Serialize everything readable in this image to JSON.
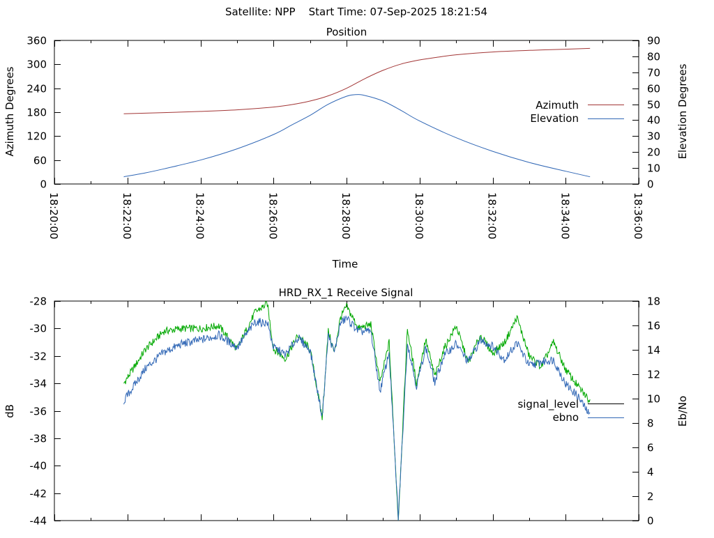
{
  "header": {
    "title": "Satellite: NPP    Start Time: 07-Sep-2025 18:21:54"
  },
  "colors": {
    "azimuth": "#a23535",
    "elevation": "#2f66b5",
    "signal_level": "#000000",
    "signal_trace": "#00a800",
    "ebno": "#2f66b5",
    "axes": "#000000",
    "background": "#ffffff"
  },
  "chart_data": [
    {
      "type": "line",
      "title": "Position",
      "xlabel": "Time",
      "ylabel": "Azimuth Degrees",
      "y2label": "Elevation Degrees",
      "xlim": [
        "18:20:00",
        "18:36:00"
      ],
      "x_ticks": [
        "18:20:00",
        "18:22:00",
        "18:24:00",
        "18:26:00",
        "18:28:00",
        "18:30:00",
        "18:32:00",
        "18:34:00",
        "18:36:00"
      ],
      "ylim": [
        0,
        360
      ],
      "y_ticks": [
        0,
        60,
        120,
        180,
        240,
        300,
        360
      ],
      "y2lim": [
        0,
        90
      ],
      "y2_ticks": [
        0,
        10,
        20,
        30,
        40,
        50,
        60,
        70,
        80,
        90
      ],
      "grid": false,
      "legend": "right",
      "series": [
        {
          "name": "Azimuth",
          "axis": "y",
          "x": [
            "18:21:54",
            "18:23:00",
            "18:24:00",
            "18:25:00",
            "18:26:00",
            "18:26:30",
            "18:27:00",
            "18:27:30",
            "18:28:00",
            "18:28:30",
            "18:29:00",
            "18:29:30",
            "18:30:00",
            "18:30:30",
            "18:31:00",
            "18:32:00",
            "18:33:00",
            "18:34:00",
            "18:34:40"
          ],
          "values": [
            176,
            179,
            182,
            186,
            193,
            199,
            208,
            221,
            240,
            264,
            285,
            301,
            311,
            318,
            324,
            331,
            335,
            338,
            340
          ]
        },
        {
          "name": "Elevation",
          "axis": "y2",
          "x": [
            "18:21:54",
            "18:22:30",
            "18:23:00",
            "18:24:00",
            "18:25:00",
            "18:26:00",
            "18:26:30",
            "18:27:00",
            "18:27:30",
            "18:28:00",
            "18:28:15",
            "18:28:30",
            "18:29:00",
            "18:29:30",
            "18:30:00",
            "18:31:00",
            "18:32:00",
            "18:33:00",
            "18:34:00",
            "18:34:40"
          ],
          "values": [
            4.5,
            7,
            9.5,
            15,
            22,
            31,
            37,
            43,
            50,
            55,
            56,
            55.5,
            52,
            46,
            39.5,
            29,
            20.5,
            13.5,
            8,
            4.5
          ]
        }
      ]
    },
    {
      "type": "line",
      "title": "HRD_RX_1 Receive Signal",
      "xlabel": "",
      "ylabel": "dB",
      "y2label": "Eb/No",
      "xlim": [
        "18:20:00",
        "18:36:00"
      ],
      "ylim": [
        -44,
        -28
      ],
      "y_ticks": [
        -44,
        -42,
        -40,
        -38,
        -36,
        -34,
        -32,
        -30,
        -28
      ],
      "y2lim": [
        0,
        18
      ],
      "y2_ticks": [
        0,
        2,
        4,
        6,
        8,
        10,
        12,
        14,
        16,
        18
      ],
      "grid": false,
      "legend": "right",
      "series": [
        {
          "name": "signal_level",
          "axis": "y",
          "x": [
            "18:21:54",
            "18:22:30",
            "18:23:00",
            "18:23:30",
            "18:24:00",
            "18:24:30",
            "18:25:00",
            "18:25:30",
            "18:25:50",
            "18:26:00",
            "18:26:20",
            "18:26:40",
            "18:27:00",
            "18:27:20",
            "18:27:30",
            "18:27:40",
            "18:27:50",
            "18:28:00",
            "18:28:20",
            "18:28:40",
            "18:28:55",
            "18:29:10",
            "18:29:25",
            "18:29:40",
            "18:29:55",
            "18:30:10",
            "18:30:25",
            "18:30:40",
            "18:31:00",
            "18:31:20",
            "18:31:40",
            "18:32:00",
            "18:32:20",
            "18:32:40",
            "18:33:00",
            "18:33:20",
            "18:33:40",
            "18:34:00",
            "18:34:20",
            "18:34:40"
          ],
          "values": [
            -34,
            -31.5,
            -30.2,
            -30,
            -30,
            -29.8,
            -31.5,
            -28.8,
            -28.2,
            -31.5,
            -32.2,
            -30.5,
            -31.5,
            -36.5,
            -30.2,
            -31.8,
            -29.2,
            -28.4,
            -30,
            -29.7,
            -34,
            -31,
            -44,
            -30,
            -34,
            -30.8,
            -33.5,
            -31.5,
            -29.8,
            -32.5,
            -30.5,
            -31.8,
            -31,
            -29.2,
            -32,
            -32.8,
            -31,
            -33,
            -34.2,
            -35.3
          ]
        },
        {
          "name": "ebno",
          "axis": "y2",
          "x": [
            "18:21:54",
            "18:22:30",
            "18:23:00",
            "18:23:30",
            "18:24:00",
            "18:24:30",
            "18:25:00",
            "18:25:30",
            "18:25:50",
            "18:26:00",
            "18:26:20",
            "18:26:40",
            "18:27:00",
            "18:27:20",
            "18:27:30",
            "18:27:40",
            "18:27:50",
            "18:28:00",
            "18:28:20",
            "18:28:40",
            "18:28:55",
            "18:29:10",
            "18:29:25",
            "18:29:40",
            "18:29:55",
            "18:30:10",
            "18:30:25",
            "18:30:40",
            "18:31:00",
            "18:31:20",
            "18:31:40",
            "18:32:00",
            "18:32:20",
            "18:32:40",
            "18:33:00",
            "18:33:20",
            "18:33:40",
            "18:34:00",
            "18:34:20",
            "18:34:40"
          ],
          "values": [
            9.8,
            12.5,
            13.8,
            14.5,
            14.8,
            15.2,
            14.2,
            16.3,
            16.2,
            14.2,
            13.6,
            15,
            14,
            8.5,
            15.2,
            13.8,
            16.2,
            16.6,
            15.5,
            15.5,
            10.6,
            13.8,
            0.2,
            14.6,
            11,
            14.2,
            11.3,
            13.5,
            14.5,
            13,
            14.8,
            14.3,
            13.2,
            14.6,
            12.7,
            13,
            13.2,
            11.2,
            10.2,
            8.6
          ]
        }
      ]
    }
  ]
}
